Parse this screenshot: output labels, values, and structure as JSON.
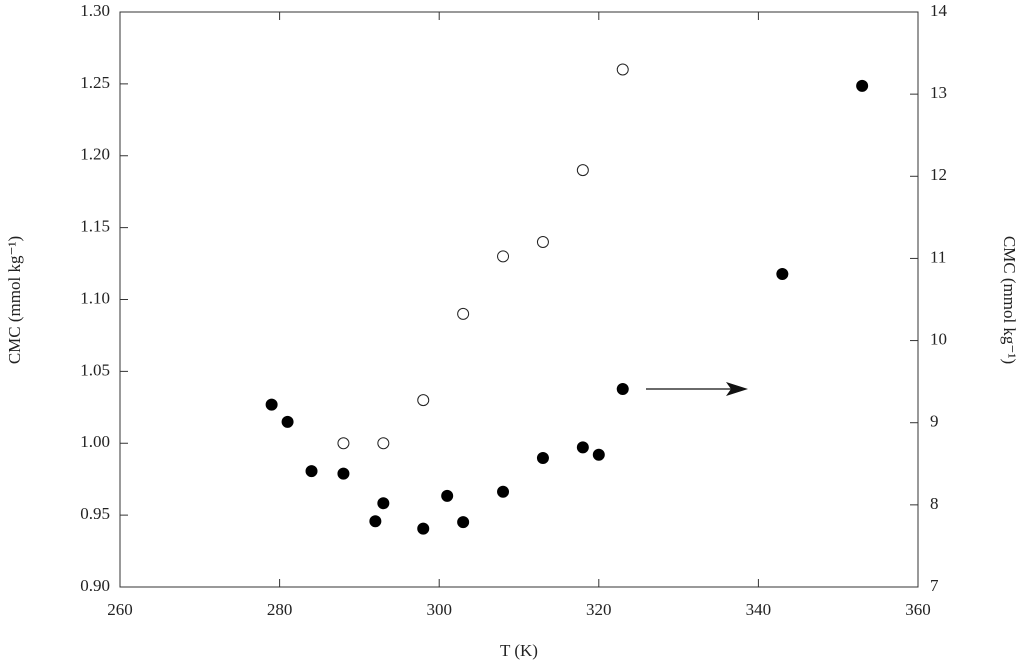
{
  "chart_data": {
    "type": "scatter",
    "x_label": "T (K)",
    "y_label": "CMC (mmol kg⁻¹)",
    "y2_label": "CMC (mmol kg⁻¹)",
    "xlim": [
      260,
      360
    ],
    "xticks": [
      260,
      280,
      300,
      320,
      340,
      360
    ],
    "ylim": [
      0.9,
      1.3
    ],
    "yticks": [
      {
        "value": 0.9,
        "label": "0.90"
      },
      0.95,
      {
        "value": 1.0,
        "label": "1.00"
      },
      1.05,
      {
        "value": 1.1,
        "label": "1.10"
      },
      1.15,
      {
        "value": 1.2,
        "label": "1.20"
      },
      1.25,
      {
        "value": 1.3,
        "label": "1.30"
      }
    ],
    "y2lim": [
      7,
      14
    ],
    "y2ticks": [
      7,
      8,
      9,
      10,
      11,
      12,
      13,
      14
    ],
    "grid": false,
    "series": [
      {
        "marker": "open",
        "color": "#222222",
        "axis": "y",
        "x": [
          288,
          293,
          298,
          303,
          308,
          313,
          318,
          323
        ],
        "values": [
          1.0,
          1.0,
          1.03,
          1.09,
          1.13,
          1.14,
          1.19,
          1.26
        ]
      },
      {
        "marker": "filled",
        "color": "#000000",
        "axis": "y2",
        "x": [
          279,
          281,
          284,
          288,
          292,
          293,
          298,
          301,
          303,
          308,
          313,
          318,
          320,
          323,
          343,
          353
        ],
        "values": [
          9.22,
          9.01,
          8.41,
          8.38,
          7.8,
          8.02,
          7.71,
          8.11,
          7.79,
          8.16,
          8.57,
          8.7,
          8.61,
          9.41,
          10.81,
          13.1
        ]
      }
    ]
  }
}
